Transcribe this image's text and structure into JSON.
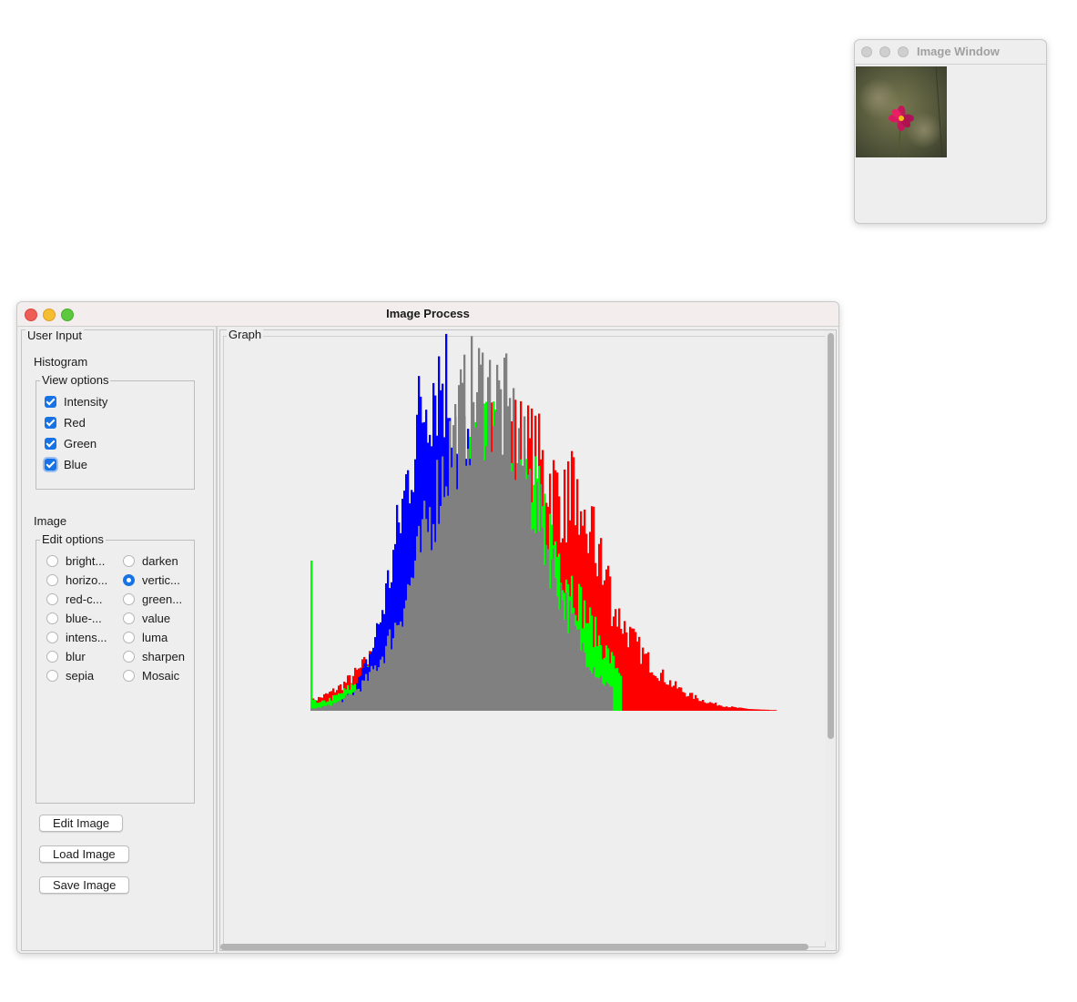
{
  "image_window": {
    "title": "Image Window"
  },
  "main_window": {
    "title": "Image Process",
    "user_input": {
      "legend": "User Input",
      "histogram_label": "Histogram",
      "view_options": {
        "legend": "View options",
        "items": [
          {
            "label": "Intensity",
            "checked": true
          },
          {
            "label": "Red",
            "checked": true
          },
          {
            "label": "Green",
            "checked": true
          },
          {
            "label": "Blue",
            "checked": true
          }
        ]
      },
      "image_label": "Image",
      "edit_options": {
        "legend": "Edit options",
        "items": [
          {
            "label": "bright...",
            "selected": false
          },
          {
            "label": "darken",
            "selected": false
          },
          {
            "label": "horizo...",
            "selected": false
          },
          {
            "label": "vertic...",
            "selected": true
          },
          {
            "label": "red-c...",
            "selected": false
          },
          {
            "label": "green...",
            "selected": false
          },
          {
            "label": "blue-...",
            "selected": false
          },
          {
            "label": "value",
            "selected": false
          },
          {
            "label": "intens...",
            "selected": false
          },
          {
            "label": "luma",
            "selected": false
          },
          {
            "label": "blur",
            "selected": false
          },
          {
            "label": "sharpen",
            "selected": false
          },
          {
            "label": "sepia",
            "selected": false
          },
          {
            "label": "Mosaic",
            "selected": false
          }
        ]
      },
      "buttons": {
        "edit": "Edit Image",
        "load": "Load Image",
        "save": "Save Image"
      }
    },
    "graph": {
      "legend": "Graph"
    }
  },
  "colors": {
    "intensity": "#808080",
    "red": "#ff0000",
    "green": "#00ff00",
    "blue": "#0000ff"
  },
  "chart_data": {
    "type": "bar",
    "x_range": [
      0,
      255
    ],
    "series_order": [
      "red",
      "green",
      "blue",
      "intensity"
    ],
    "series": [
      {
        "key": "blue",
        "peak_bin": 70,
        "peak": 400,
        "spread": 20,
        "cutoff": 100
      },
      {
        "key": "intensity",
        "peak_bin": 95,
        "peak": 380,
        "spread": 30,
        "cutoff": 165
      },
      {
        "key": "green",
        "peak_bin": 100,
        "peak": 310,
        "spread": 36,
        "cutoff": 170
      },
      {
        "key": "red",
        "peak_bin": 108,
        "peak": 320,
        "spread": 42,
        "cutoff": 255
      }
    ]
  }
}
